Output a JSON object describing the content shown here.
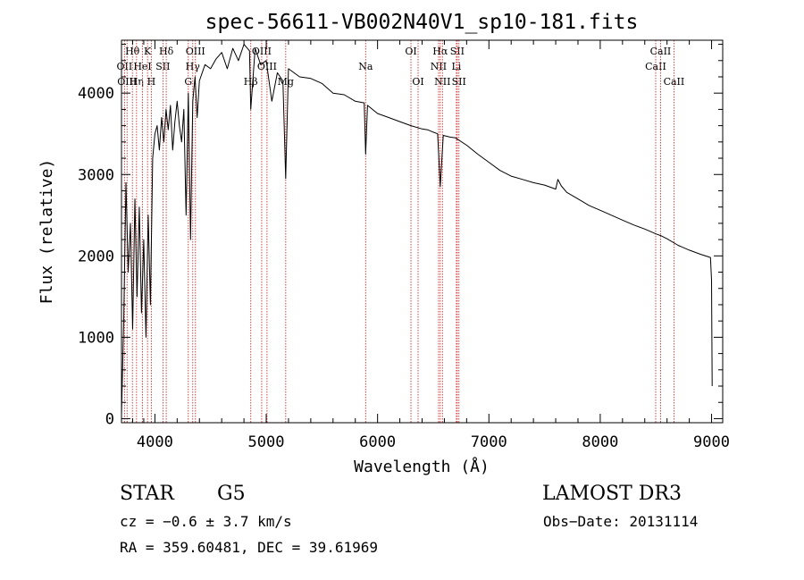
{
  "chart_data": {
    "type": "line",
    "title": "spec-56611-VB002N40V1_sp10-181.fits",
    "xlabel": "Wavelength (Å)",
    "ylabel": "Flux (relative)",
    "xlim": [
      3700,
      9100
    ],
    "ylim": [
      -50,
      4650
    ],
    "xticks": [
      4000,
      5000,
      6000,
      7000,
      8000,
      9000
    ],
    "xtick_labels": [
      "4000",
      "5000",
      "6000",
      "7000",
      "8000",
      "9000"
    ],
    "yticks": [
      0,
      1000,
      2000,
      3000,
      4000
    ],
    "ytick_labels": [
      "0",
      "1000",
      "2000",
      "3000",
      "4000"
    ],
    "grid": false,
    "series": [
      {
        "name": "flux",
        "x": [
          3700,
          3720,
          3740,
          3760,
          3780,
          3800,
          3820,
          3840,
          3860,
          3880,
          3900,
          3920,
          3940,
          3960,
          3980,
          4000,
          4020,
          4040,
          4060,
          4080,
          4100,
          4120,
          4140,
          4160,
          4180,
          4200,
          4220,
          4240,
          4260,
          4280,
          4300,
          4320,
          4340,
          4360,
          4380,
          4400,
          4450,
          4500,
          4550,
          4600,
          4650,
          4700,
          4750,
          4800,
          4850,
          4861,
          4900,
          4950,
          5000,
          5050,
          5100,
          5150,
          5175,
          5200,
          5300,
          5400,
          5500,
          5600,
          5700,
          5800,
          5880,
          5893,
          5910,
          6000,
          6100,
          6200,
          6300,
          6400,
          6450,
          6500,
          6540,
          6563,
          6590,
          6650,
          6700,
          6800,
          6900,
          7000,
          7100,
          7200,
          7300,
          7400,
          7500,
          7600,
          7620,
          7650,
          7700,
          7800,
          7900,
          8000,
          8100,
          8200,
          8300,
          8400,
          8500,
          8542,
          8600,
          8700,
          8800,
          8900,
          8990,
          9000,
          9005
        ],
        "y": [
          50,
          1200,
          2900,
          1800,
          2400,
          1100,
          2700,
          1500,
          2600,
          1300,
          2200,
          1000,
          2500,
          1400,
          3200,
          3500,
          3600,
          3300,
          3700,
          3400,
          3800,
          3550,
          3850,
          3300,
          3650,
          3900,
          3600,
          3400,
          3800,
          2500,
          4000,
          2200,
          3900,
          4200,
          3700,
          4150,
          4350,
          4300,
          4420,
          4500,
          4300,
          4550,
          4400,
          4600,
          4520,
          3800,
          4550,
          4350,
          4400,
          3900,
          4250,
          4150,
          2950,
          4300,
          4200,
          4180,
          4120,
          4000,
          3980,
          3900,
          3880,
          3250,
          3850,
          3750,
          3700,
          3650,
          3600,
          3560,
          3550,
          3520,
          3500,
          2850,
          3480,
          3460,
          3450,
          3360,
          3250,
          3150,
          3050,
          2980,
          2940,
          2900,
          2870,
          2820,
          2940,
          2860,
          2780,
          2700,
          2620,
          2560,
          2500,
          2440,
          2380,
          2330,
          2270,
          2250,
          2210,
          2130,
          2070,
          2020,
          1980,
          1700,
          400
        ]
      }
    ],
    "lines": [
      {
        "wl": 3727,
        "label": "OII",
        "row": 2
      },
      {
        "wl": 3750,
        "label": "OIII",
        "row": 3
      },
      {
        "wl": 3798,
        "label": "Hθ",
        "row": 1
      },
      {
        "wl": 3835,
        "label": "Hη",
        "row": 3
      },
      {
        "wl": 3889,
        "label": "HeI",
        "row": 2
      },
      {
        "wl": 3934,
        "label": "K",
        "row": 1
      },
      {
        "wl": 3968,
        "label": "H",
        "row": 3
      },
      {
        "wl": 4072,
        "label": "SII",
        "row": 2
      },
      {
        "wl": 4102,
        "label": "Hδ",
        "row": 1
      },
      {
        "wl": 4300,
        "label": "G",
        "row": 3
      },
      {
        "wl": 4340,
        "label": "Hγ",
        "row": 2
      },
      {
        "wl": 4364,
        "label": "OIII",
        "row": 1
      },
      {
        "wl": 4861,
        "label": "Hβ",
        "row": 3
      },
      {
        "wl": 4959,
        "label": "OIII",
        "row": 1
      },
      {
        "wl": 5007,
        "label": "OIII",
        "row": 2
      },
      {
        "wl": 5175,
        "label": "Mg",
        "row": 3
      },
      {
        "wl": 5893,
        "label": "Na",
        "row": 2
      },
      {
        "wl": 6300,
        "label": "OI",
        "row": 1
      },
      {
        "wl": 6364,
        "label": "OI",
        "row": 3
      },
      {
        "wl": 6548,
        "label": "NII",
        "row": 2
      },
      {
        "wl": 6563,
        "label": "Hα",
        "row": 1
      },
      {
        "wl": 6583,
        "label": "NII",
        "row": 3
      },
      {
        "wl": 6708,
        "label": "Li",
        "row": 2
      },
      {
        "wl": 6716,
        "label": "SII",
        "row": 1
      },
      {
        "wl": 6731,
        "label": "SII",
        "row": 3
      },
      {
        "wl": 8498,
        "label": "CaII",
        "row": 2
      },
      {
        "wl": 8542,
        "label": "CaII",
        "row": 1
      },
      {
        "wl": 8662,
        "label": "CaII",
        "row": 3
      }
    ]
  },
  "info": {
    "object_type": "STAR",
    "subclass": "G5",
    "survey": "LAMOST DR3",
    "cz": "cz = −0.6 ± 3.7 km/s",
    "obs_date": "Obs−Date: 20131114",
    "coords": "RA = 359.60481, DEC =  39.61969"
  },
  "colors": {
    "line_marker": "#cc3333",
    "spectrum": "#000000"
  }
}
